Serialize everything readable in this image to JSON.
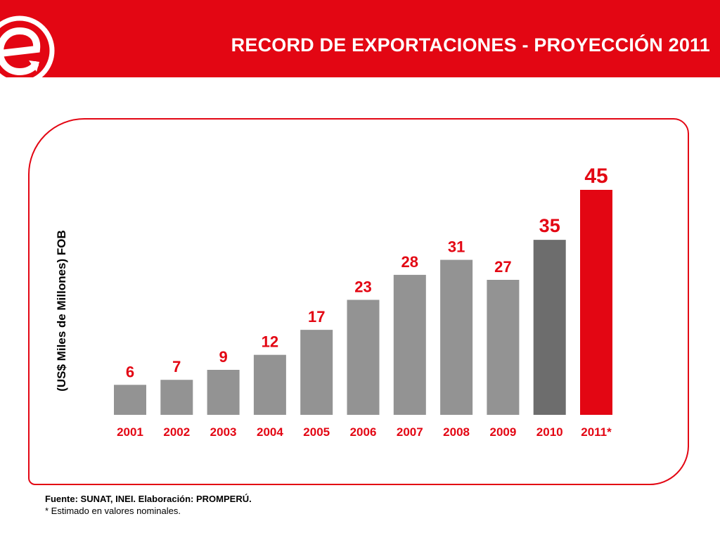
{
  "header": {
    "title": "RECORD DE EXPORTACIONES - PROYECCIÓN 2011",
    "background_color": "#e30613"
  },
  "logo": {
    "icon": "e-arrow-logo-icon",
    "letter": "e"
  },
  "chart_data": {
    "type": "bar",
    "ylabel": "(US$ Miles de Millones) FOB",
    "xlabel": "",
    "categories": [
      "2001",
      "2002",
      "2003",
      "2004",
      "2005",
      "2006",
      "2007",
      "2008",
      "2009",
      "2010",
      "2011*"
    ],
    "values": [
      6,
      7,
      9,
      12,
      17,
      23,
      28,
      31,
      27,
      35,
      45
    ],
    "value_labels": [
      "6",
      "7",
      "9",
      "12",
      "17",
      "23",
      "28",
      "31",
      "27",
      "35",
      "45"
    ],
    "ylim": [
      0,
      45
    ],
    "grid": false,
    "legend": "none",
    "bar_colors": [
      "#939393",
      "#939393",
      "#939393",
      "#939393",
      "#939393",
      "#939393",
      "#939393",
      "#939393",
      "#939393",
      "#6d6d6d",
      "#e30613"
    ],
    "label_color": "#e30613",
    "category_label_color": "#e30613"
  },
  "footer": {
    "source": "Fuente: SUNAT, INEI. Elaboración: PROMPERÚ.",
    "note": "* Estimado en valores nominales."
  }
}
